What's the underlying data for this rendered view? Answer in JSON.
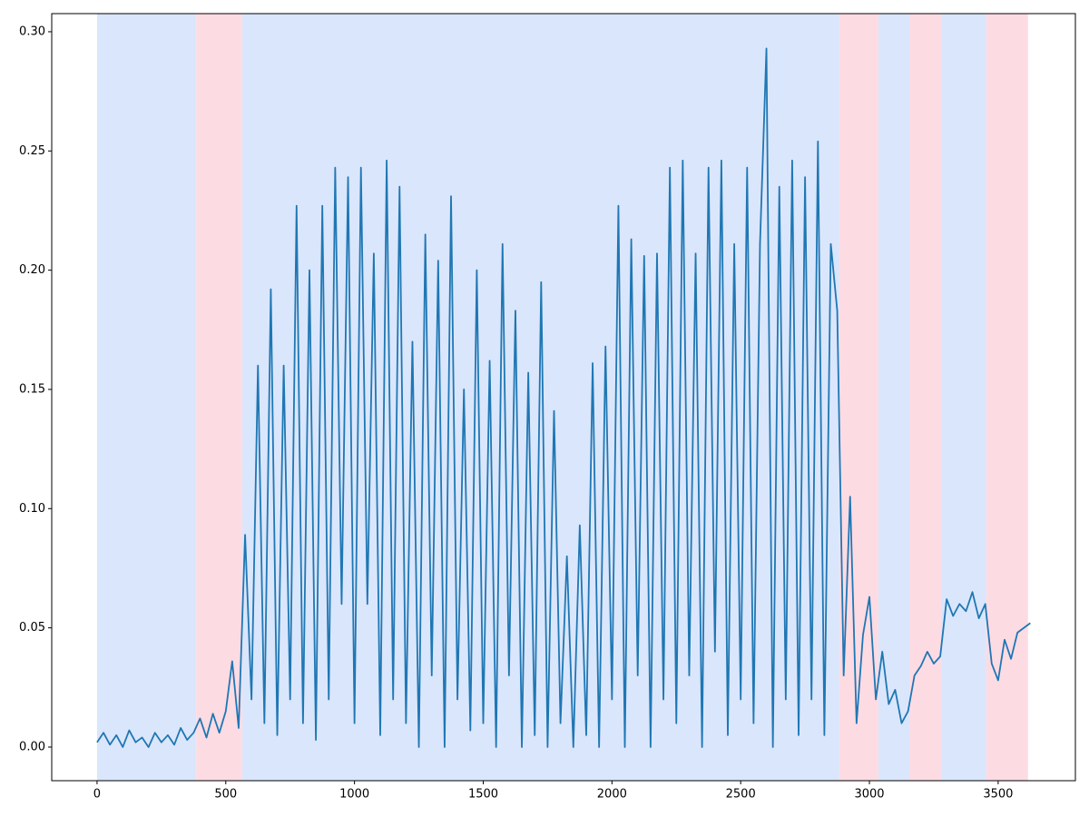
{
  "chart_data": {
    "type": "line",
    "x": [
      0,
      25,
      50,
      75,
      100,
      125,
      150,
      175,
      200,
      225,
      250,
      275,
      300,
      325,
      350,
      375,
      400,
      425,
      450,
      475,
      500,
      525,
      550,
      575,
      600,
      625,
      650,
      675,
      700,
      725,
      750,
      775,
      800,
      825,
      850,
      875,
      900,
      925,
      950,
      975,
      1000,
      1025,
      1050,
      1075,
      1100,
      1125,
      1150,
      1175,
      1200,
      1225,
      1250,
      1275,
      1300,
      1325,
      1350,
      1375,
      1400,
      1425,
      1450,
      1475,
      1500,
      1525,
      1550,
      1575,
      1600,
      1625,
      1650,
      1675,
      1700,
      1725,
      1750,
      1775,
      1800,
      1825,
      1850,
      1875,
      1900,
      1925,
      1950,
      1975,
      2000,
      2025,
      2050,
      2075,
      2100,
      2125,
      2150,
      2175,
      2200,
      2225,
      2250,
      2275,
      2300,
      2325,
      2350,
      2375,
      2400,
      2425,
      2450,
      2475,
      2500,
      2525,
      2550,
      2575,
      2600,
      2625,
      2650,
      2675,
      2700,
      2725,
      2750,
      2775,
      2800,
      2825,
      2850,
      2875,
      2900,
      2925,
      2950,
      2975,
      3000,
      3025,
      3050,
      3075,
      3100,
      3125,
      3150,
      3175,
      3200,
      3225,
      3250,
      3275,
      3300,
      3325,
      3350,
      3375,
      3400,
      3425,
      3450,
      3475,
      3500,
      3525,
      3550,
      3575,
      3600,
      3625
    ],
    "series": [
      {
        "color": "#1f77b4",
        "values": [
          0.002,
          0.006,
          0.001,
          0.005,
          0.0,
          0.007,
          0.002,
          0.004,
          0.0,
          0.006,
          0.002,
          0.005,
          0.001,
          0.008,
          0.003,
          0.006,
          0.012,
          0.004,
          0.014,
          0.006,
          0.015,
          0.036,
          0.008,
          0.089,
          0.02,
          0.16,
          0.01,
          0.192,
          0.005,
          0.16,
          0.02,
          0.227,
          0.01,
          0.2,
          0.003,
          0.227,
          0.02,
          0.243,
          0.06,
          0.239,
          0.01,
          0.243,
          0.06,
          0.207,
          0.005,
          0.246,
          0.02,
          0.235,
          0.01,
          0.17,
          0.0,
          0.215,
          0.03,
          0.204,
          0.0,
          0.231,
          0.02,
          0.15,
          0.007,
          0.2,
          0.01,
          0.162,
          0.0,
          0.211,
          0.03,
          0.183,
          0.0,
          0.157,
          0.005,
          0.195,
          0.0,
          0.141,
          0.01,
          0.08,
          0.0,
          0.093,
          0.005,
          0.161,
          0.0,
          0.168,
          0.02,
          0.227,
          0.0,
          0.213,
          0.03,
          0.206,
          0.0,
          0.207,
          0.02,
          0.243,
          0.01,
          0.246,
          0.03,
          0.207,
          0.0,
          0.243,
          0.04,
          0.246,
          0.005,
          0.211,
          0.02,
          0.243,
          0.01,
          0.211,
          0.293,
          0.0,
          0.235,
          0.02,
          0.246,
          0.005,
          0.239,
          0.02,
          0.254,
          0.005,
          0.211,
          0.183,
          0.03,
          0.105,
          0.01,
          0.047,
          0.063,
          0.02,
          0.04,
          0.018,
          0.024,
          0.01,
          0.015,
          0.03,
          0.034,
          0.04,
          0.035,
          0.038,
          0.062,
          0.055,
          0.06,
          0.057,
          0.065,
          0.054,
          0.06,
          0.035,
          0.028,
          0.045,
          0.037,
          0.048,
          0.05,
          0.052
        ]
      }
    ],
    "spans": [
      {
        "start": 0,
        "end": 385,
        "color": "#dae6fb"
      },
      {
        "start": 385,
        "end": 564,
        "color": "#fddbe3"
      },
      {
        "start": 564,
        "end": 2883,
        "color": "#dae6fb"
      },
      {
        "start": 2883,
        "end": 3035,
        "color": "#fddbe3"
      },
      {
        "start": 3035,
        "end": 3155,
        "color": "#dae6fb"
      },
      {
        "start": 3155,
        "end": 3278,
        "color": "#fddbe3"
      },
      {
        "start": 3278,
        "end": 3454,
        "color": "#dae6fb"
      },
      {
        "start": 3454,
        "end": 3616,
        "color": "#fddbe3"
      }
    ],
    "xlim": [
      -176,
      3800
    ],
    "ylim": [
      -0.0141,
      0.3076
    ],
    "xticks": [
      0,
      500,
      1000,
      1500,
      2000,
      2500,
      3000,
      3500
    ],
    "yticks": [
      {
        "value": 0,
        "label": "0.00"
      },
      {
        "value": 0.05,
        "label": "0.05"
      },
      {
        "value": 0.1,
        "label": "0.10"
      },
      {
        "value": 0.15,
        "label": "0.15"
      },
      {
        "value": 0.2,
        "label": "0.20"
      },
      {
        "value": 0.25,
        "label": "0.25"
      },
      {
        "value": 0.3,
        "label": "0.30"
      }
    ]
  }
}
